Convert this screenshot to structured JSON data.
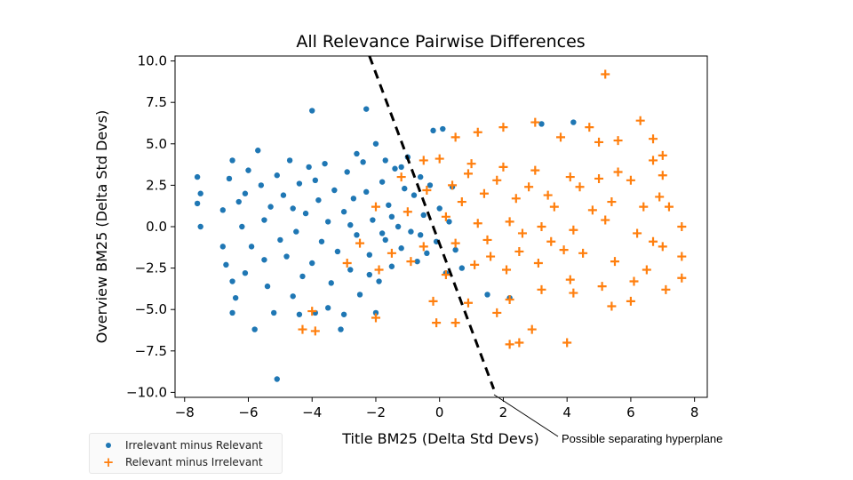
{
  "chart_data": {
    "type": "scatter",
    "title": "All Relevance Pairwise Differences",
    "xlabel": "Title BM25 (Delta Std Devs)",
    "ylabel": "Overview BM25 (Delta Std Devs)",
    "xlim": [
      -8.3,
      8.4
    ],
    "ylim": [
      -10.3,
      10.3
    ],
    "xticks": [
      -8,
      -6,
      -4,
      -2,
      0,
      2,
      4,
      6,
      8
    ],
    "xtick_labels": [
      "−8",
      "−6",
      "−4",
      "−2",
      "0",
      "2",
      "4",
      "6",
      "8"
    ],
    "yticks": [
      10,
      7.5,
      5,
      2.5,
      0,
      -2.5,
      -5,
      -7.5,
      -10
    ],
    "ytick_labels": [
      "10.0",
      "7.5",
      "5.0",
      "2.5",
      "0.0",
      "−2.5",
      "−5.0",
      "−7.5",
      "−10.0"
    ],
    "grid": false,
    "legend_position": "bottom-left, outside plot",
    "series": [
      {
        "name": "Irrelevant minus Relevant",
        "marker": "dot",
        "color": "#1f77b4",
        "points": [
          [
            -7.6,
            3.0
          ],
          [
            -7.6,
            1.4
          ],
          [
            -7.5,
            0.0
          ],
          [
            -7.5,
            2.0
          ],
          [
            -6.8,
            1.0
          ],
          [
            -6.8,
            -1.2
          ],
          [
            -6.7,
            -2.3
          ],
          [
            -6.6,
            2.9
          ],
          [
            -6.5,
            4.0
          ],
          [
            -6.5,
            -3.3
          ],
          [
            -6.5,
            -5.2
          ],
          [
            -6.4,
            -4.3
          ],
          [
            -6.3,
            1.5
          ],
          [
            -6.2,
            0.0
          ],
          [
            -6.1,
            2.0
          ],
          [
            -6.1,
            -2.8
          ],
          [
            -6.0,
            3.4
          ],
          [
            -5.9,
            -1.2
          ],
          [
            -5.8,
            -6.2
          ],
          [
            -5.7,
            4.6
          ],
          [
            -5.6,
            2.5
          ],
          [
            -5.5,
            0.4
          ],
          [
            -5.5,
            -2.0
          ],
          [
            -5.4,
            -3.6
          ],
          [
            -5.3,
            1.2
          ],
          [
            -5.2,
            -5.2
          ],
          [
            -5.1,
            3.1
          ],
          [
            -5.1,
            -9.2
          ],
          [
            -5.0,
            -0.8
          ],
          [
            -4.9,
            1.9
          ],
          [
            -4.8,
            -1.8
          ],
          [
            -4.7,
            4.0
          ],
          [
            -4.6,
            -4.2
          ],
          [
            -4.5,
            -0.3
          ],
          [
            -4.4,
            2.6
          ],
          [
            -4.3,
            -3.0
          ],
          [
            -4.2,
            0.8
          ],
          [
            -4.1,
            3.6
          ],
          [
            -4.0,
            7.0
          ],
          [
            -4.0,
            -2.2
          ],
          [
            -3.9,
            -5.2
          ],
          [
            -3.8,
            1.6
          ],
          [
            -3.7,
            -0.9
          ],
          [
            -3.6,
            3.8
          ],
          [
            -3.5,
            0.3
          ],
          [
            -3.4,
            -3.4
          ],
          [
            -3.3,
            2.2
          ],
          [
            -3.2,
            -1.5
          ],
          [
            -3.1,
            -6.2
          ],
          [
            -3.0,
            0.9
          ],
          [
            -2.9,
            3.3
          ],
          [
            -2.8,
            -2.6
          ],
          [
            -2.7,
            1.7
          ],
          [
            -2.6,
            -0.5
          ],
          [
            -2.5,
            -4.1
          ],
          [
            -2.4,
            3.9
          ],
          [
            -2.3,
            2.1
          ],
          [
            -2.3,
            7.1
          ],
          [
            -2.2,
            -1.7
          ],
          [
            -2.1,
            0.4
          ],
          [
            -2.0,
            5.0
          ],
          [
            -1.9,
            -3.3
          ],
          [
            -1.8,
            2.7
          ],
          [
            -1.7,
            -0.8
          ],
          [
            -1.6,
            1.3
          ],
          [
            -1.5,
            -2.4
          ],
          [
            -1.4,
            3.5
          ],
          [
            -1.3,
            0.0
          ],
          [
            -1.2,
            -1.3
          ],
          [
            -1.1,
            2.3
          ],
          [
            -1.0,
            4.2
          ],
          [
            -0.9,
            -0.3
          ],
          [
            -0.8,
            1.9
          ],
          [
            -0.7,
            -2.1
          ],
          [
            -0.6,
            3.0
          ],
          [
            -0.5,
            0.7
          ],
          [
            -0.4,
            -1.6
          ],
          [
            -0.3,
            2.5
          ],
          [
            -0.2,
            5.8
          ],
          [
            -0.1,
            -0.9
          ],
          [
            0.0,
            1.1
          ],
          [
            0.1,
            5.9
          ],
          [
            0.2,
            -2.8
          ],
          [
            0.3,
            0.3
          ],
          [
            0.4,
            2.4
          ],
          [
            0.5,
            -1.4
          ],
          [
            0.7,
            -2.5
          ],
          [
            1.5,
            -4.1
          ],
          [
            2.2,
            -4.3
          ],
          [
            3.2,
            6.2
          ],
          [
            4.2,
            6.3
          ],
          [
            -3.5,
            -4.9
          ],
          [
            -2.6,
            4.4
          ],
          [
            -1.7,
            4.0
          ],
          [
            -4.4,
            -5.3
          ],
          [
            -3.0,
            -5.3
          ],
          [
            -2.0,
            -5.2
          ],
          [
            -1.2,
            3.6
          ],
          [
            -3.9,
            2.8
          ],
          [
            -2.2,
            -2.9
          ],
          [
            -1.5,
            0.6
          ],
          [
            -0.6,
            -0.5
          ],
          [
            -4.6,
            1.1
          ],
          [
            -2.8,
            0.1
          ],
          [
            -1.8,
            -0.4
          ]
        ]
      },
      {
        "name": "Relevant minus Irrelevant",
        "marker": "plus",
        "color": "#ff7f0e",
        "points": [
          [
            5.2,
            9.2
          ],
          [
            6.3,
            6.4
          ],
          [
            4.7,
            6.0
          ],
          [
            3.0,
            6.3
          ],
          [
            2.0,
            6.0
          ],
          [
            1.2,
            5.7
          ],
          [
            0.5,
            5.4
          ],
          [
            3.8,
            5.4
          ],
          [
            5.0,
            5.1
          ],
          [
            5.6,
            5.2
          ],
          [
            6.7,
            5.3
          ],
          [
            7.0,
            4.3
          ],
          [
            6.7,
            4.0
          ],
          [
            -0.5,
            4.0
          ],
          [
            0.0,
            4.1
          ],
          [
            1.0,
            3.8
          ],
          [
            2.0,
            3.6
          ],
          [
            3.0,
            3.4
          ],
          [
            4.1,
            3.0
          ],
          [
            5.0,
            2.9
          ],
          [
            5.6,
            3.3
          ],
          [
            6.0,
            2.8
          ],
          [
            7.0,
            3.1
          ],
          [
            6.9,
            1.8
          ],
          [
            -1.2,
            3.0
          ],
          [
            -0.4,
            2.2
          ],
          [
            0.4,
            2.5
          ],
          [
            1.4,
            2.0
          ],
          [
            2.4,
            1.7
          ],
          [
            3.4,
            1.9
          ],
          [
            4.4,
            2.4
          ],
          [
            5.4,
            1.5
          ],
          [
            6.4,
            1.2
          ],
          [
            7.2,
            1.2
          ],
          [
            -2.0,
            1.2
          ],
          [
            -1.0,
            0.9
          ],
          [
            0.2,
            0.6
          ],
          [
            1.2,
            0.2
          ],
          [
            2.2,
            0.3
          ],
          [
            3.2,
            0.0
          ],
          [
            4.2,
            -0.2
          ],
          [
            5.2,
            0.4
          ],
          [
            6.2,
            -0.4
          ],
          [
            6.7,
            -0.9
          ],
          [
            7.6,
            0.0
          ],
          [
            7.0,
            -1.2
          ],
          [
            -2.5,
            -1.0
          ],
          [
            -1.5,
            -1.6
          ],
          [
            -0.5,
            -1.2
          ],
          [
            0.5,
            -1.0
          ],
          [
            1.5,
            -0.8
          ],
          [
            2.5,
            -1.5
          ],
          [
            3.5,
            -0.9
          ],
          [
            4.5,
            -1.6
          ],
          [
            5.5,
            -2.1
          ],
          [
            6.5,
            -2.6
          ],
          [
            7.6,
            -1.8
          ],
          [
            7.6,
            -3.1
          ],
          [
            -2.9,
            -2.2
          ],
          [
            -1.9,
            -2.6
          ],
          [
            -0.9,
            -2.1
          ],
          [
            0.2,
            -2.9
          ],
          [
            1.1,
            -2.3
          ],
          [
            2.1,
            -2.6
          ],
          [
            3.1,
            -2.2
          ],
          [
            4.1,
            -3.2
          ],
          [
            5.1,
            -3.6
          ],
          [
            6.1,
            -3.3
          ],
          [
            7.1,
            -3.8
          ],
          [
            6.0,
            -4.5
          ],
          [
            5.4,
            -4.8
          ],
          [
            -0.2,
            -4.5
          ],
          [
            0.9,
            -4.6
          ],
          [
            2.2,
            -4.4
          ],
          [
            3.2,
            -3.8
          ],
          [
            4.2,
            -4.0
          ],
          [
            -4.0,
            -5.1
          ],
          [
            -3.9,
            -6.3
          ],
          [
            -4.3,
            -6.2
          ],
          [
            -2.0,
            -5.5
          ],
          [
            -0.1,
            -5.8
          ],
          [
            0.5,
            -5.8
          ],
          [
            1.8,
            -5.2
          ],
          [
            2.2,
            -7.1
          ],
          [
            2.5,
            -7.0
          ],
          [
            2.9,
            -6.2
          ],
          [
            4.0,
            -7.0
          ],
          [
            0.9,
            3.2
          ],
          [
            1.8,
            2.8
          ],
          [
            2.8,
            2.4
          ],
          [
            3.6,
            1.2
          ],
          [
            4.8,
            1.0
          ],
          [
            1.6,
            -1.8
          ],
          [
            2.6,
            -0.4
          ],
          [
            3.9,
            -1.4
          ],
          [
            0.7,
            1.5
          ]
        ]
      }
    ],
    "annotation": "Possible separating hyperplane",
    "hyperplane": [
      [
        -2.2,
        10.3
      ],
      [
        1.7,
        -9.8
      ]
    ]
  }
}
